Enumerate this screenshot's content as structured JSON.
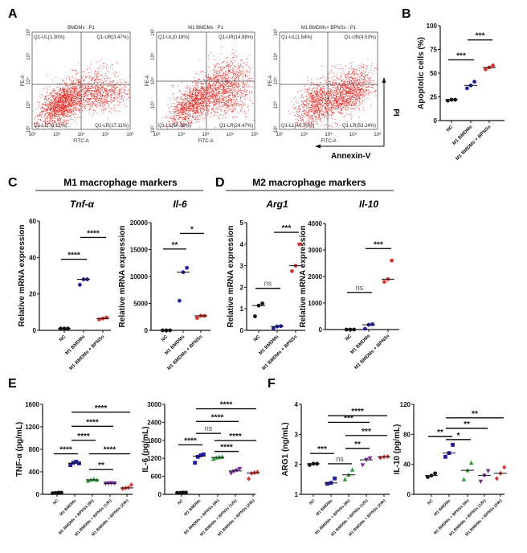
{
  "panel_labels": {
    "A": "A",
    "B": "B",
    "C": "C",
    "D": "D",
    "E": "E",
    "F": "F"
  },
  "headers": {
    "m1": "M1 macrophage markers",
    "m2": "M2 macrophage markers"
  },
  "genes": {
    "tnf": "Tnf-α",
    "il6": "Il-6",
    "arg1": "Arg1",
    "il10": "Il-10"
  },
  "flow": {
    "x_label": "FITC-A",
    "y_label": "PE-A",
    "ticks": [
      "10²",
      "10³",
      "10⁴",
      "10⁵",
      "10⁶"
    ],
    "annexin_label": "Annexin-V",
    "pi_label": "PI",
    "point_color": "#e8261f",
    "plots": [
      {
        "title": "BMDMs : P1",
        "UL": "Q1-UL(1.30%)",
        "UR": "Q1-UR(3.47%)",
        "LL": "Q1-LL(78.12%)",
        "LR": "Q1-LR(17.11%)"
      },
      {
        "title": "M1 BMDMs : P1",
        "UL": "Q1-UL(0.18%)",
        "UR": "Q1-UR(14.98%)",
        "LL": "Q1-LL(60.39%)",
        "LR": "Q1-LR(24.47%)"
      },
      {
        "title": "M1 BMDMs+ BPNSs : P1",
        "UL": "Q1-UL(1.54%)",
        "UR": "Q1-UR(4.53%)",
        "LL": "Q1-LL(40.70%)",
        "LR": "Q1-LR(53.24%)"
      }
    ]
  },
  "chart_data": [
    {
      "id": "B",
      "type": "scatter",
      "ylabel": "Apoptotic cells (%)",
      "ylim": [
        0,
        100
      ],
      "yticks": [
        "0",
        "25",
        "50",
        "75",
        "100"
      ],
      "categories": [
        "NC",
        "M1 BMDMs",
        "M1 BMDMs + BPNSs"
      ],
      "colors": [
        "#111111",
        "#1f1fa8",
        "#e0312d"
      ],
      "markers": [
        "circle",
        "circle",
        "circle"
      ],
      "values": [
        [
          21,
          22,
          22
        ],
        [
          34,
          37,
          41
        ],
        [
          54,
          56,
          58
        ]
      ],
      "sig": [
        {
          "a": 0,
          "b": 1,
          "y": 64,
          "label": "***"
        },
        {
          "a": 1,
          "b": 2,
          "y": 85,
          "label": "***"
        }
      ]
    },
    {
      "id": "C1",
      "type": "scatter",
      "ylabel": "Relative mRNA expression",
      "ylim": [
        0,
        60
      ],
      "yticks": [
        "0",
        "20",
        "40",
        "60"
      ],
      "categories": [
        "NC",
        "M1 BMDMs",
        "M1 BMDMs + BPNSs"
      ],
      "colors": [
        "#111111",
        "#1f1fa8",
        "#e0312d"
      ],
      "markers": [
        "circle",
        "circle",
        "circle"
      ],
      "values": [
        [
          1,
          1,
          1
        ],
        [
          25,
          28,
          28
        ],
        [
          6,
          6.5,
          7
        ]
      ],
      "sig": [
        {
          "a": 0,
          "b": 1,
          "y": 39,
          "label": "****"
        },
        {
          "a": 1,
          "b": 2,
          "y": 51,
          "label": "****"
        }
      ]
    },
    {
      "id": "C2",
      "type": "scatter",
      "ylabel": "Relative mRNA expression",
      "ylim": [
        0,
        20000
      ],
      "yticks": [
        "0",
        "5000",
        "10000",
        "15000",
        "20000"
      ],
      "categories": [
        "NC",
        "M1 BMDMs",
        "M1 BMDMs + BPNSs"
      ],
      "colors": [
        "#111111",
        "#1f1fa8",
        "#e0312d"
      ],
      "markers": [
        "circle",
        "circle",
        "circle"
      ],
      "values": [
        [
          0,
          0,
          0
        ],
        [
          5500,
          10800,
          11600
        ],
        [
          2300,
          2700,
          2700
        ]
      ],
      "sig": [
        {
          "a": 0,
          "b": 1,
          "y": 15100,
          "label": "**"
        },
        {
          "a": 1,
          "b": 2,
          "y": 18000,
          "label": "*"
        }
      ]
    },
    {
      "id": "D1",
      "type": "scatter",
      "ylabel": "Relative mRNA expression",
      "ylim": [
        0,
        5
      ],
      "yticks": [
        "0",
        "1",
        "2",
        "3",
        "4",
        "5"
      ],
      "categories": [
        "NC",
        "M1 BMDMs",
        "M1 BMDMs + BPNSs"
      ],
      "colors": [
        "#111111",
        "#1f1fa8",
        "#e0312d"
      ],
      "markers": [
        "circle",
        "circle",
        "circle"
      ],
      "values": [
        [
          0.65,
          1.15,
          1.25
        ],
        [
          0.1,
          0.18,
          0.2
        ],
        [
          2.75,
          3,
          4
        ]
      ],
      "sig": [
        {
          "a": 0,
          "b": 1,
          "y": 1.95,
          "label": "ns"
        },
        {
          "a": 1,
          "b": 2,
          "y": 4.55,
          "label": "***"
        }
      ]
    },
    {
      "id": "D2",
      "type": "scatter",
      "ylabel": "Relative mRNA expression",
      "ylim": [
        0,
        4000
      ],
      "yticks": [
        "0",
        "1000",
        "2000",
        "3000",
        "4000"
      ],
      "categories": [
        "NC",
        "M1 BMDMs",
        "M1 BMDMs + BPNSs"
      ],
      "colors": [
        "#111111",
        "#1f1fa8",
        "#e0312d"
      ],
      "markers": [
        "circle",
        "circle",
        "circle"
      ],
      "values": [
        [
          0,
          0,
          0
        ],
        [
          30,
          180,
          200
        ],
        [
          1800,
          1900,
          2600
        ]
      ],
      "sig": [
        {
          "a": 0,
          "b": 1,
          "y": 1400,
          "label": "ns"
        },
        {
          "a": 1,
          "b": 2,
          "y": 3050,
          "label": "***"
        }
      ]
    },
    {
      "id": "E1",
      "type": "scatter",
      "ylabel": "TNF-α (pg/mL)",
      "ylim": [
        0,
        1600
      ],
      "yticks": [
        "0",
        "400",
        "800",
        "1200",
        "1600"
      ],
      "categories": [
        "NC",
        "M1 BMDMs",
        "M1 BMDMs + BPNSs (6h)",
        "M1 BMDMs + BPNSs (12h)",
        "M1 BMDMs + BPNSs (24h)"
      ],
      "colors": [
        "#111111",
        "#1f1fa8",
        "#2e9e3a",
        "#7a2a9c",
        "#e0312d"
      ],
      "markers": [
        "circle",
        "square",
        "triangle",
        "triangle-down",
        "diamond"
      ],
      "values": [
        [
          20,
          25,
          30,
          30
        ],
        [
          520,
          560,
          580,
          550
        ],
        [
          240,
          260,
          270,
          255
        ],
        [
          190,
          195,
          200,
          195
        ],
        [
          100,
          110,
          120,
          170
        ]
      ],
      "sig": [
        {
          "a": 0,
          "b": 1,
          "y": 720,
          "label": "****"
        },
        {
          "a": 1,
          "b": 2,
          "y": 960,
          "label": "****"
        },
        {
          "a": 1,
          "b": 3,
          "y": 1210,
          "label": "****"
        },
        {
          "a": 1,
          "b": 4,
          "y": 1460,
          "label": "****"
        },
        {
          "a": 2,
          "b": 3,
          "y": 440,
          "label": "**"
        },
        {
          "a": 2,
          "b": 4,
          "y": 720,
          "label": "****"
        }
      ]
    },
    {
      "id": "E2",
      "type": "scatter",
      "ylabel": "IL-6 (pg/mL)",
      "ylim": [
        0,
        3000
      ],
      "yticks": [
        "0",
        "600",
        "1200",
        "1800",
        "2400",
        "3000"
      ],
      "categories": [
        "NC",
        "M1 BMDMs",
        "M1 BMDMs + BPNSs (6h)",
        "M1 BMDMs + BPNSs (12h)",
        "M1 BMDMs + BPNSs (24h)"
      ],
      "colors": [
        "#111111",
        "#1f1fa8",
        "#2e9e3a",
        "#7a2a9c",
        "#e0312d"
      ],
      "markers": [
        "circle",
        "square",
        "triangle",
        "triangle-down",
        "diamond"
      ],
      "values": [
        [
          50,
          50,
          60,
          60
        ],
        [
          1050,
          1250,
          1300,
          1330
        ],
        [
          1180,
          1220,
          1240,
          1250
        ],
        [
          700,
          760,
          800,
          850
        ],
        [
          520,
          700,
          720,
          740
        ]
      ],
      "sig": [
        {
          "a": 0,
          "b": 1,
          "y": 1650,
          "label": "****"
        },
        {
          "a": 1,
          "b": 2,
          "y": 2030,
          "label": "ns"
        },
        {
          "a": 1,
          "b": 3,
          "y": 2430,
          "label": "****"
        },
        {
          "a": 1,
          "b": 4,
          "y": 2850,
          "label": "****"
        },
        {
          "a": 2,
          "b": 3,
          "y": 1430,
          "label": "****"
        },
        {
          "a": 2,
          "b": 4,
          "y": 1790,
          "label": "****"
        }
      ]
    },
    {
      "id": "F1",
      "type": "scatter",
      "ylabel": "ARG1 (ng/mL)",
      "ylim": [
        1,
        4
      ],
      "yticks": [
        "1",
        "2",
        "3",
        "4"
      ],
      "categories": [
        "NC",
        "M1 BMDMs",
        "M1 BMDMs + BPNSs (6h)",
        "M1 BMDMs + BPNSs (12h)",
        "M1 BMDMs + BPNSs (24h)"
      ],
      "colors": [
        "#111111",
        "#1f1fa8",
        "#2e9e3a",
        "#7a2a9c",
        "#e0312d"
      ],
      "markers": [
        "circle",
        "square",
        "triangle",
        "triangle-down",
        "diamond"
      ],
      "values": [
        [
          1.98,
          2.02,
          2.02
        ],
        [
          1.35,
          1.38,
          1.53
        ],
        [
          1.5,
          1.65,
          1.82
        ],
        [
          1.97,
          2.15,
          2.2
        ],
        [
          2.22,
          2.25,
          2.26
        ]
      ],
      "sig": [
        {
          "a": 0,
          "b": 1,
          "y": 2.36,
          "label": "***"
        },
        {
          "a": 1,
          "b": 2,
          "y": 2.02,
          "label": "ns"
        },
        {
          "a": 1,
          "b": 3,
          "y": 3.4,
          "label": "***"
        },
        {
          "a": 1,
          "b": 4,
          "y": 3.62,
          "label": "****"
        },
        {
          "a": 2,
          "b": 3,
          "y": 2.53,
          "label": "**"
        },
        {
          "a": 2,
          "b": 4,
          "y": 2.96,
          "label": "***"
        }
      ]
    },
    {
      "id": "F2",
      "type": "scatter",
      "ylabel": "IL-10 (pg/mL)",
      "ylim": [
        0,
        120
      ],
      "yticks": [
        "0",
        "40",
        "80",
        "120"
      ],
      "categories": [
        "NC",
        "M1 BMDMs",
        "M1 BMDMs + BPNSs (6h)",
        "M1 BMDMs + BPNSs (12h)",
        "M1 BMDMs + BPNSs (24h)"
      ],
      "colors": [
        "#111111",
        "#1f1fa8",
        "#2e9e3a",
        "#7a2a9c",
        "#e0312d"
      ],
      "markers": [
        "circle",
        "square",
        "triangle",
        "triangle-down",
        "diamond"
      ],
      "values": [
        [
          23,
          25,
          28
        ],
        [
          50,
          55,
          66
        ],
        [
          20,
          32,
          42
        ],
        [
          17,
          25,
          31
        ],
        [
          21,
          28,
          36
        ]
      ],
      "sig": [
        {
          "a": 0,
          "b": 1,
          "y": 77,
          "label": "**"
        },
        {
          "a": 1,
          "b": 2,
          "y": 73,
          "label": "*"
        },
        {
          "a": 1,
          "b": 3,
          "y": 88,
          "label": "**"
        },
        {
          "a": 1,
          "b": 4,
          "y": 102,
          "label": "**"
        }
      ]
    }
  ]
}
